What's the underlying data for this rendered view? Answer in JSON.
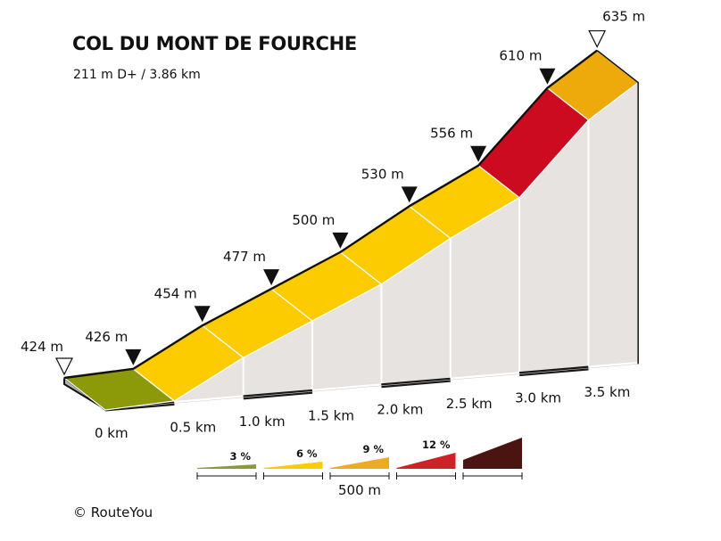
{
  "chart_data": {
    "type": "area",
    "title": "COL DU MONT DE FOURCHE",
    "subtitle": "211 m D+ / 3.86 km",
    "elevation_points": [
      {
        "km": 0.0,
        "elevation": 424,
        "label": "424 m"
      },
      {
        "km": 0.5,
        "elevation": 426,
        "label": "426 m"
      },
      {
        "km": 1.0,
        "elevation": 454,
        "label": "454 m"
      },
      {
        "km": 1.5,
        "elevation": 477,
        "label": "477 m"
      },
      {
        "km": 2.0,
        "elevation": 500,
        "label": "500 m"
      },
      {
        "km": 2.5,
        "elevation": 530,
        "label": "530 m"
      },
      {
        "km": 3.0,
        "elevation": 556,
        "label": "556 m"
      },
      {
        "km": 3.5,
        "elevation": 610,
        "label": "610 m"
      },
      {
        "km": 3.86,
        "elevation": 635,
        "label": "635 m"
      }
    ],
    "segment_colors": [
      "#8c9a0a",
      "#fccc00",
      "#fccc00",
      "#fccc00",
      "#fccc00",
      "#fccc00",
      "#cc0a20",
      "#eeaa0a"
    ],
    "distance_labels": [
      "0 km",
      "0.5 km",
      "1.0 km",
      "1.5 km",
      "2.0 km",
      "2.5 km",
      "3.0 km",
      "3.5 km"
    ],
    "legend": {
      "items": [
        {
          "label": "3 %",
          "color": "#8c9a3c"
        },
        {
          "label": "6 %",
          "color": "#fccc00"
        },
        {
          "label": "9 %",
          "color": "#eeaa22"
        },
        {
          "label": "12 %",
          "color": "#cc2228"
        },
        {
          "label": "",
          "color": "#4a1410"
        }
      ],
      "scale_label": "500 m"
    }
  },
  "copyright": "© RouteYou"
}
